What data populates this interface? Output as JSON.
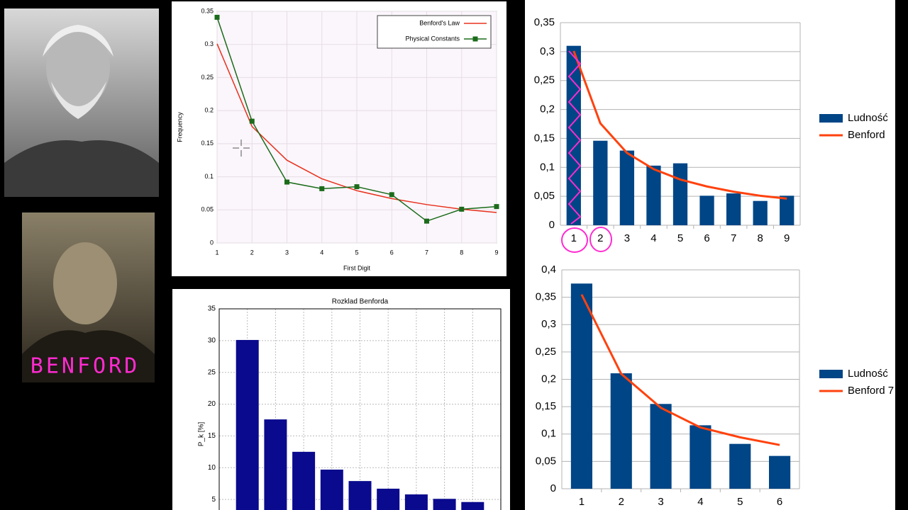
{
  "photo_caption": "BENFORD",
  "chart_data": [
    {
      "type": "line",
      "xlabel": "First Digit",
      "ylabel": "Frequency",
      "x": [
        1,
        2,
        3,
        4,
        5,
        6,
        7,
        8,
        9
      ],
      "xlim": [
        1,
        9
      ],
      "xticks": [
        1,
        2,
        3,
        4,
        5,
        6,
        7,
        8,
        9
      ],
      "ylim": [
        0,
        0.35
      ],
      "yticks": [
        0,
        0.05,
        0.1,
        0.15,
        0.2,
        0.25,
        0.3,
        0.35
      ],
      "grid": true,
      "legend": "upper right",
      "series": [
        {
          "name": "Benford's Law",
          "color": "#e8321e",
          "marker": "none",
          "values": [
            0.301,
            0.176,
            0.125,
            0.097,
            0.079,
            0.067,
            0.058,
            0.051,
            0.046
          ]
        },
        {
          "name": "Physical Constants",
          "color": "#1b6b1b",
          "marker": "square",
          "values": [
            0.341,
            0.184,
            0.092,
            0.082,
            0.085,
            0.073,
            0.033,
            0.051,
            0.055
          ]
        }
      ]
    },
    {
      "type": "bar",
      "title": "Rozklad Benforda",
      "ylabel": "P_k [%]",
      "color": "#0a0a8e",
      "values": [
        30.1,
        17.6,
        12.5,
        9.7,
        7.9,
        6.7,
        5.8,
        5.1,
        4.6
      ],
      "ylim": [
        0,
        35
      ],
      "yticks": [
        5,
        10,
        15,
        20,
        25,
        30,
        35
      ],
      "grid": true
    },
    {
      "type": "combo",
      "categories": [
        "1",
        "2",
        "3",
        "4",
        "5",
        "6",
        "7",
        "8",
        "9"
      ],
      "ylim": [
        0,
        0.35
      ],
      "yticks": [
        0,
        {
          "value": 0.05,
          "label": "0,05"
        },
        {
          "value": 0.1,
          "label": "0,1"
        },
        {
          "value": 0.15,
          "label": "0,15"
        },
        {
          "value": 0.2,
          "label": "0,2"
        },
        {
          "value": 0.25,
          "label": "0,25"
        },
        {
          "value": 0.3,
          "label": "0,3"
        },
        {
          "value": 0.35,
          "label": "0,35"
        }
      ],
      "grid": true,
      "legend": "right",
      "series": [
        {
          "name": "Ludność",
          "kind": "bar",
          "color": "#004586",
          "values": [
            0.31,
            0.146,
            0.129,
            0.103,
            0.107,
            0.051,
            0.055,
            0.042,
            0.051
          ]
        },
        {
          "name": "Benford",
          "kind": "line",
          "color": "#ff420e",
          "values": [
            0.301,
            0.176,
            0.125,
            0.097,
            0.079,
            0.067,
            0.058,
            0.051,
            0.046
          ]
        }
      ]
    },
    {
      "type": "combo",
      "categories": [
        "1",
        "2",
        "3",
        "4",
        "5",
        "6"
      ],
      "ylim": [
        0,
        0.4
      ],
      "yticks": [
        0,
        {
          "value": 0.05,
          "label": "0,05"
        },
        {
          "value": 0.1,
          "label": "0,1"
        },
        {
          "value": 0.15,
          "label": "0,15"
        },
        {
          "value": 0.2,
          "label": "0,2"
        },
        {
          "value": 0.25,
          "label": "0,25"
        },
        {
          "value": 0.3,
          "label": "0,3"
        },
        {
          "value": 0.35,
          "label": "0,35"
        },
        {
          "value": 0.4,
          "label": "0,4"
        }
      ],
      "grid": true,
      "legend": "right",
      "series": [
        {
          "name": "Ludność",
          "kind": "bar",
          "color": "#004586",
          "values": [
            0.375,
            0.211,
            0.155,
            0.116,
            0.082,
            0.06
          ]
        },
        {
          "name": "Benford 7",
          "kind": "line",
          "color": "#ff420e",
          "values": [
            0.355,
            0.21,
            0.148,
            0.112,
            0.094,
            0.08
          ]
        }
      ]
    }
  ]
}
